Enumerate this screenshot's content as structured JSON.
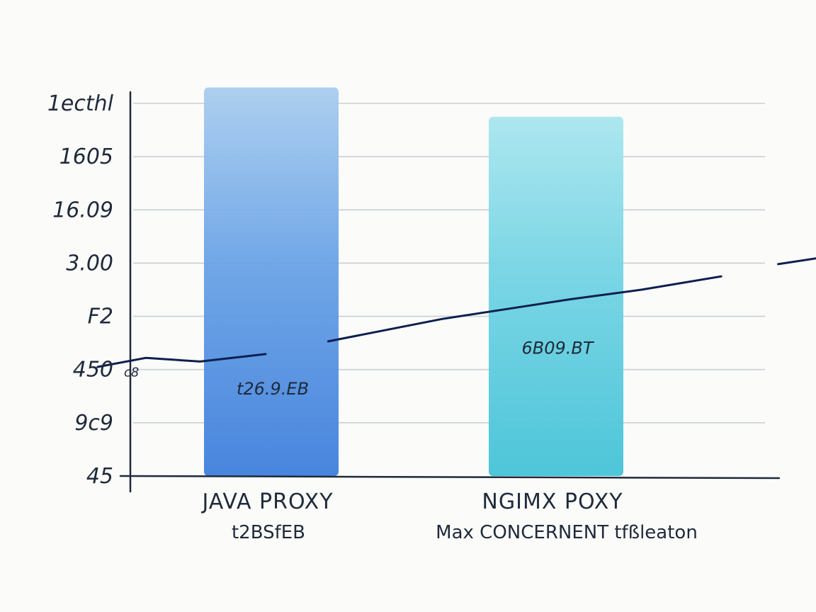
{
  "chart_data": {
    "type": "bar",
    "categories": [
      "JAVA PROXY",
      "NGIMX POXY"
    ],
    "category_sublabels": [
      "t2BSfEB",
      "Max CONCERNENT tfßleaton"
    ],
    "values": [
      7.3,
      6.75
    ],
    "bar_labels": [
      "t26.9.EB",
      "6B09.BT"
    ],
    "bar_colors": [
      "#3f7fdc",
      "#45c3d8"
    ],
    "y_tick_labels": [
      "45",
      "9c9",
      "450",
      "F2",
      "3.00",
      "16.09",
      "1605",
      "1ecthl"
    ],
    "y_tick_positions": [
      0,
      1,
      2,
      3,
      4,
      5,
      6,
      7
    ],
    "extra_label": "c8",
    "ylim": [
      0,
      7
    ],
    "grid": true,
    "trend_line": {
      "color": "#0d1f4f",
      "segments": [
        [
          [
            -0.61,
            2.05
          ],
          [
            -0.44,
            2.22
          ],
          [
            -0.25,
            2.15
          ],
          [
            -0.02,
            2.29
          ]
        ],
        [
          [
            0.2,
            2.53
          ],
          [
            0.6,
            2.95
          ],
          [
            1.05,
            3.32
          ],
          [
            1.3,
            3.5
          ],
          [
            1.58,
            3.75
          ]
        ],
        [
          [
            1.78,
            3.98
          ],
          [
            2.05,
            4.2
          ],
          [
            2.33,
            4.28
          ]
        ]
      ]
    }
  }
}
